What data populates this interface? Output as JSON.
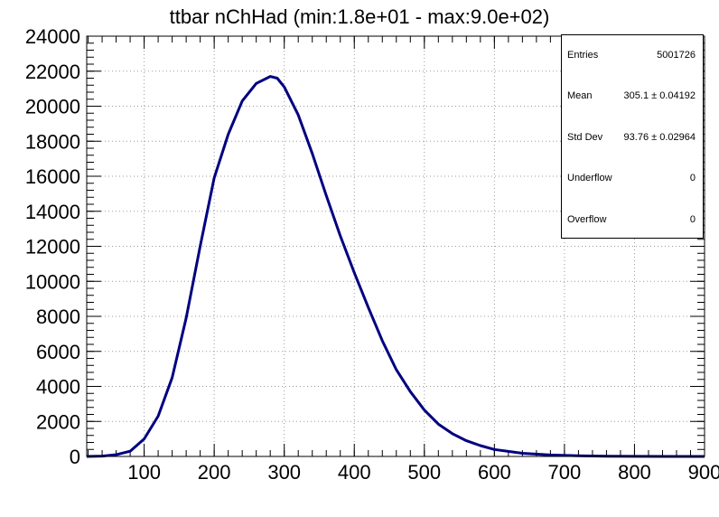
{
  "chart_data": {
    "type": "line",
    "title": "ttbar nChHad (min:1.8e+01 - max:9.0e+02)",
    "xlabel": "",
    "ylabel": "",
    "xlim": [
      18,
      900
    ],
    "ylim": [
      0,
      24000
    ],
    "x_ticks": [
      100,
      200,
      300,
      400,
      500,
      600,
      700,
      800,
      900
    ],
    "y_ticks": [
      0,
      2000,
      4000,
      6000,
      8000,
      10000,
      12000,
      14000,
      16000,
      18000,
      20000,
      22000,
      24000
    ],
    "grid": true,
    "line_color": "#000080",
    "series": [
      {
        "x": [
          18,
          40,
          60,
          80,
          100,
          120,
          140,
          160,
          180,
          200,
          220,
          240,
          260,
          280,
          290,
          300,
          320,
          340,
          360,
          380,
          400,
          420,
          440,
          460,
          480,
          500,
          520,
          540,
          560,
          580,
          600,
          640,
          680,
          720,
          760,
          800,
          850,
          900
        ],
        "y": [
          0,
          20,
          100,
          300,
          1000,
          2300,
          4500,
          7900,
          12000,
          15900,
          18400,
          20300,
          21300,
          21700,
          21600,
          21100,
          19500,
          17300,
          14900,
          12600,
          10500,
          8500,
          6600,
          4950,
          3700,
          2650,
          1850,
          1300,
          900,
          620,
          400,
          180,
          80,
          35,
          15,
          6,
          2,
          0
        ]
      }
    ]
  },
  "stats": {
    "rows": [
      {
        "key": "Entries",
        "value": "5001726"
      },
      {
        "key": "Mean",
        "value": "305.1 ± 0.04192"
      },
      {
        "key": "Std Dev",
        "value": "93.76 ± 0.02964"
      },
      {
        "key": "Underflow",
        "value": "0"
      },
      {
        "key": "Overflow",
        "value": "0"
      }
    ]
  }
}
